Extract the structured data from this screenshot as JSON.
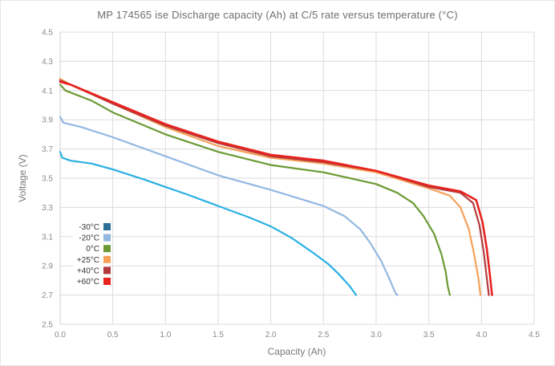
{
  "chart_data": {
    "type": "line",
    "title": "MP 174565 ise Discharge capacity (Ah) at C/5 rate versus temperature (°C)",
    "xlabel": "Capacity (Ah)",
    "ylabel": "Voltage (V)",
    "xlim": [
      0.0,
      4.5
    ],
    "ylim": [
      2.5,
      4.5
    ],
    "x_ticks": [
      "0.0",
      "0.5",
      "1.0",
      "1.5",
      "2.0",
      "2.5",
      "3.0",
      "3.5",
      "4.0",
      "4.5"
    ],
    "y_ticks": [
      "2.5",
      "2.7",
      "2.9",
      "3.1",
      "3.3",
      "3.5",
      "3.7",
      "3.9",
      "4.1",
      "4.3",
      "4.5"
    ],
    "grid": true,
    "legend_position": "bottom-left",
    "series": [
      {
        "name": "-30°C",
        "color": "#2ab0e4",
        "legend_color": "#2e6f98",
        "points": [
          [
            0.0,
            3.68
          ],
          [
            0.02,
            3.64
          ],
          [
            0.1,
            3.62
          ],
          [
            0.3,
            3.6
          ],
          [
            0.5,
            3.56
          ],
          [
            0.8,
            3.49
          ],
          [
            1.0,
            3.44
          ],
          [
            1.2,
            3.39
          ],
          [
            1.5,
            3.31
          ],
          [
            1.8,
            3.23
          ],
          [
            2.0,
            3.17
          ],
          [
            2.2,
            3.09
          ],
          [
            2.4,
            2.99
          ],
          [
            2.55,
            2.91
          ],
          [
            2.65,
            2.84
          ],
          [
            2.75,
            2.76
          ],
          [
            2.81,
            2.7
          ]
        ]
      },
      {
        "name": "-20°C",
        "color": "#92b8e2",
        "legend_color": "#92b8e2",
        "points": [
          [
            0.0,
            3.92
          ],
          [
            0.03,
            3.88
          ],
          [
            0.2,
            3.85
          ],
          [
            0.5,
            3.78
          ],
          [
            1.0,
            3.65
          ],
          [
            1.5,
            3.52
          ],
          [
            2.0,
            3.42
          ],
          [
            2.5,
            3.31
          ],
          [
            2.7,
            3.24
          ],
          [
            2.85,
            3.15
          ],
          [
            2.95,
            3.05
          ],
          [
            3.05,
            2.93
          ],
          [
            3.12,
            2.82
          ],
          [
            3.18,
            2.72
          ],
          [
            3.2,
            2.7
          ]
        ]
      },
      {
        "name": "0°C",
        "color": "#6b9a35",
        "legend_color": "#6b9a35",
        "points": [
          [
            0.0,
            4.14
          ],
          [
            0.05,
            4.1
          ],
          [
            0.3,
            4.03
          ],
          [
            0.5,
            3.95
          ],
          [
            1.0,
            3.8
          ],
          [
            1.5,
            3.68
          ],
          [
            2.0,
            3.59
          ],
          [
            2.5,
            3.54
          ],
          [
            3.0,
            3.46
          ],
          [
            3.2,
            3.4
          ],
          [
            3.35,
            3.33
          ],
          [
            3.45,
            3.24
          ],
          [
            3.55,
            3.12
          ],
          [
            3.62,
            2.98
          ],
          [
            3.66,
            2.86
          ],
          [
            3.68,
            2.76
          ],
          [
            3.7,
            2.7
          ]
        ]
      },
      {
        "name": "+25°C",
        "color": "#f6a15a",
        "legend_color": "#f6a15a",
        "points": [
          [
            0.0,
            4.18
          ],
          [
            0.1,
            4.14
          ],
          [
            0.5,
            4.01
          ],
          [
            1.0,
            3.85
          ],
          [
            1.5,
            3.72
          ],
          [
            2.0,
            3.64
          ],
          [
            2.5,
            3.6
          ],
          [
            3.0,
            3.54
          ],
          [
            3.5,
            3.43
          ],
          [
            3.7,
            3.38
          ],
          [
            3.8,
            3.3
          ],
          [
            3.88,
            3.15
          ],
          [
            3.93,
            2.98
          ],
          [
            3.97,
            2.82
          ],
          [
            3.99,
            2.7
          ]
        ]
      },
      {
        "name": "+40°C",
        "color": "#b33a3d",
        "legend_color": "#b33a3d",
        "points": [
          [
            0.0,
            4.17
          ],
          [
            0.1,
            4.14
          ],
          [
            0.5,
            4.01
          ],
          [
            1.0,
            3.86
          ],
          [
            1.5,
            3.74
          ],
          [
            2.0,
            3.65
          ],
          [
            2.5,
            3.61
          ],
          [
            3.0,
            3.55
          ],
          [
            3.5,
            3.44
          ],
          [
            3.8,
            3.4
          ],
          [
            3.92,
            3.33
          ],
          [
            3.98,
            3.18
          ],
          [
            4.02,
            3.0
          ],
          [
            4.05,
            2.82
          ],
          [
            4.07,
            2.7
          ]
        ]
      },
      {
        "name": "+60°C",
        "color": "#e8231f",
        "legend_color": "#e8231f",
        "points": [
          [
            0.0,
            4.16
          ],
          [
            0.1,
            4.14
          ],
          [
            0.5,
            4.02
          ],
          [
            1.0,
            3.87
          ],
          [
            1.5,
            3.75
          ],
          [
            2.0,
            3.66
          ],
          [
            2.5,
            3.62
          ],
          [
            3.0,
            3.55
          ],
          [
            3.5,
            3.45
          ],
          [
            3.8,
            3.41
          ],
          [
            3.95,
            3.35
          ],
          [
            4.01,
            3.2
          ],
          [
            4.05,
            3.02
          ],
          [
            4.08,
            2.84
          ],
          [
            4.1,
            2.7
          ]
        ]
      }
    ]
  }
}
